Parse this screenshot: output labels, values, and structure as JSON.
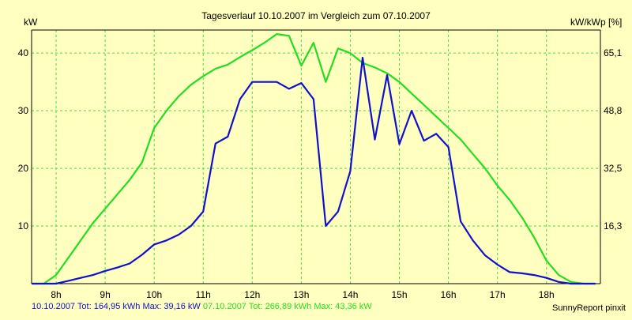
{
  "chart_data": {
    "type": "line",
    "title": "Tagesverlauf 10.10.2007 im Vergleich zum 07.10.2007",
    "ylabel_left": "kW",
    "ylabel_right": "kW/kWp [%]",
    "ylim": [
      0,
      44
    ],
    "xlim": [
      7.5,
      19.1
    ],
    "y_ticks_left": [
      "10",
      "20",
      "30",
      "40"
    ],
    "y_tick_values_left": [
      10,
      20,
      30,
      40
    ],
    "y_ticks_right": [
      "16,3",
      "32,5",
      "48,8",
      "65,1"
    ],
    "y_tick_values_right": [
      10,
      20,
      30,
      40
    ],
    "x_ticks": [
      "8h",
      "9h",
      "10h",
      "11h",
      "12h",
      "13h",
      "14h",
      "15h",
      "16h",
      "17h",
      "18h"
    ],
    "x_tick_values": [
      8,
      9,
      10,
      11,
      12,
      13,
      14,
      15,
      16,
      17,
      18
    ],
    "grid": true,
    "series": [
      {
        "name": "07.10.2007",
        "color": "#22dd22",
        "x": [
          7.5,
          7.75,
          8.0,
          8.25,
          8.5,
          8.75,
          9.0,
          9.25,
          9.5,
          9.75,
          10.0,
          10.25,
          10.5,
          10.75,
          11.0,
          11.25,
          11.5,
          11.75,
          12.0,
          12.25,
          12.5,
          12.75,
          13.0,
          13.25,
          13.5,
          13.75,
          14.0,
          14.25,
          14.5,
          14.75,
          15.0,
          15.25,
          15.5,
          15.75,
          16.0,
          16.25,
          16.5,
          16.75,
          17.0,
          17.25,
          17.5,
          17.75,
          18.0,
          18.25,
          18.5,
          18.75,
          19.0
        ],
        "values": [
          0,
          0,
          1.5,
          4.5,
          7.5,
          10.5,
          13,
          15.5,
          18,
          21,
          27,
          30,
          32.5,
          34.5,
          36,
          37.3,
          38,
          39.3,
          40.5,
          41.8,
          43.3,
          43,
          37.8,
          41.8,
          35,
          40.8,
          40,
          38.3,
          37.5,
          36.5,
          35,
          33,
          31,
          29,
          27,
          25,
          22.5,
          20,
          17,
          14.5,
          11.5,
          8,
          4,
          1.5,
          0.3,
          0,
          0
        ]
      },
      {
        "name": "10.10.2007",
        "color": "#1111cc",
        "x": [
          7.5,
          7.75,
          8.0,
          8.25,
          8.5,
          8.75,
          9.0,
          9.25,
          9.5,
          9.75,
          10.0,
          10.25,
          10.5,
          10.75,
          11.0,
          11.25,
          11.5,
          11.75,
          12.0,
          12.25,
          12.5,
          12.75,
          13.0,
          13.25,
          13.5,
          13.75,
          14.0,
          14.25,
          14.5,
          14.75,
          15.0,
          15.25,
          15.5,
          15.75,
          16.0,
          16.25,
          16.5,
          16.75,
          17.0,
          17.25,
          17.5,
          17.75,
          18.0,
          18.25,
          18.5,
          18.75,
          19.0
        ],
        "values": [
          0,
          0,
          0,
          0.5,
          1,
          1.5,
          2.2,
          2.8,
          3.5,
          5,
          6.8,
          7.5,
          8.5,
          10,
          12.5,
          24.3,
          25.5,
          32,
          35,
          35,
          35,
          33.8,
          34.8,
          32,
          10,
          12.5,
          19.5,
          39.2,
          25,
          36.2,
          24.2,
          30,
          24.8,
          26,
          23.7,
          10.8,
          7.5,
          4.9,
          3.3,
          2,
          1.8,
          1.5,
          1,
          0.3,
          0,
          0,
          0
        ]
      }
    ],
    "footer": {
      "series1_text": "10.10.2007 Tot: 164,95 kWh Max: 39,16 kW",
      "series2_text": "07.10.2007 Tot: 266,89 kWh Max: 43,36 kW",
      "credit": "SunnyReport pinxit"
    }
  }
}
